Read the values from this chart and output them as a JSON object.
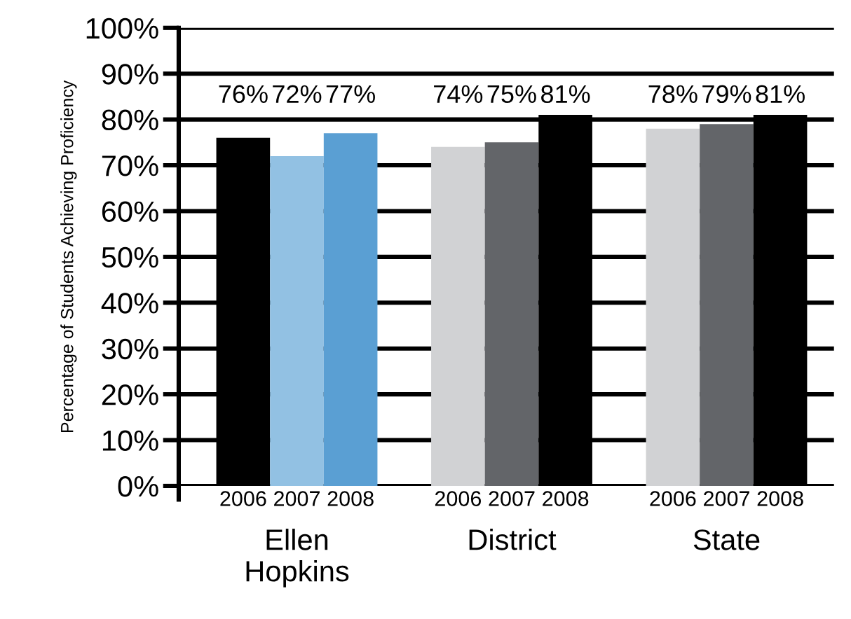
{
  "chart_data": {
    "type": "bar",
    "ylabel": "Percentage of Students Achieving Proficiency",
    "categories": [
      "Ellen\nHopkins",
      "District",
      "State"
    ],
    "series": [
      {
        "name": "2006",
        "colors": [
          "#000000",
          "#d1d2d4",
          "#d1d2d4"
        ],
        "values": [
          76,
          74,
          78
        ],
        "value_labels": [
          "76%",
          "74%",
          "78%"
        ]
      },
      {
        "name": "2007",
        "colors": [
          "#92c1e3",
          "#636569",
          "#636569"
        ],
        "values": [
          72,
          75,
          79
        ],
        "value_labels": [
          "72%",
          "75%",
          "79%"
        ]
      },
      {
        "name": "2008",
        "colors": [
          "#5a9fd3",
          "#000000",
          "#000000"
        ],
        "values": [
          77,
          81,
          81
        ],
        "value_labels": [
          "77%",
          "81%",
          "81%"
        ]
      }
    ],
    "ylim": [
      0,
      100
    ],
    "yticks": [
      {
        "value": 0,
        "label": "0%"
      },
      {
        "value": 10,
        "label": "10%"
      },
      {
        "value": 20,
        "label": "20%"
      },
      {
        "value": 30,
        "label": "30%"
      },
      {
        "value": 40,
        "label": "40%"
      },
      {
        "value": 50,
        "label": "50%"
      },
      {
        "value": 60,
        "label": "60%"
      },
      {
        "value": 70,
        "label": "70%"
      },
      {
        "value": 80,
        "label": "80%"
      },
      {
        "value": 90,
        "label": "90%"
      },
      {
        "value": 100,
        "label": "100%"
      }
    ],
    "grid": "y",
    "legend": false
  }
}
